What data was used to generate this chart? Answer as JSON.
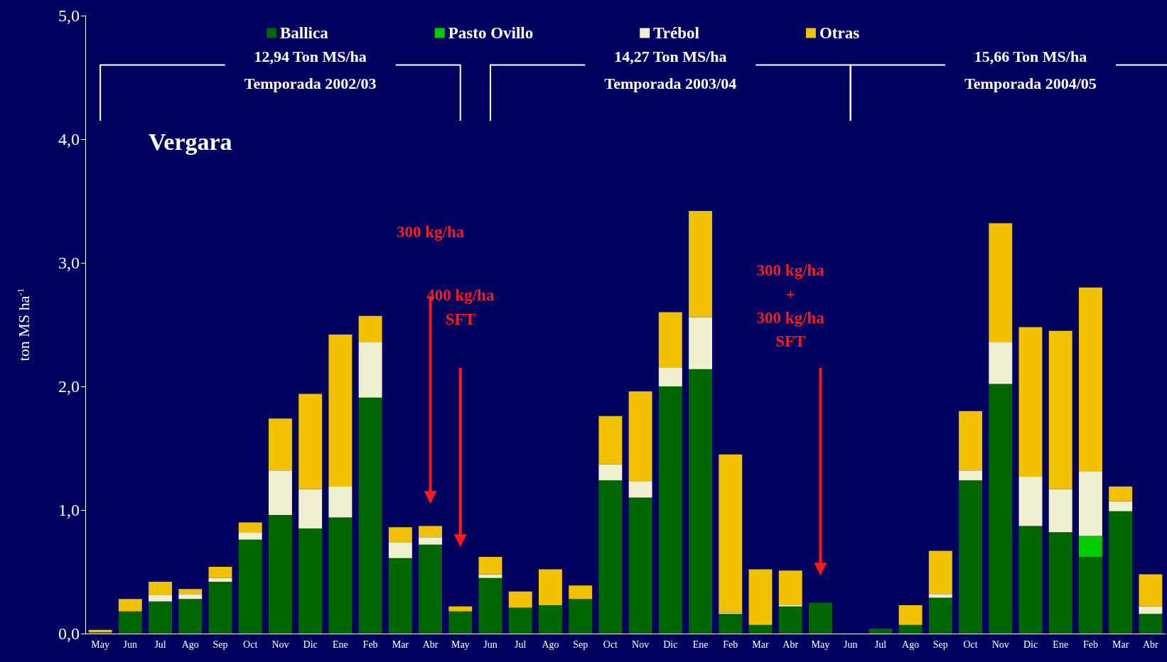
{
  "chart_data": {
    "type": "bar",
    "stacked": true,
    "legend": "top",
    "grid": false,
    "ylabel": "ton MS ha$^{-1}$",
    "categories": [
      "May",
      "Jun",
      "Jul",
      "Ago",
      "Sep",
      "Oct",
      "Nov",
      "Dic",
      "Ene",
      "Feb",
      "Mar",
      "Abr",
      "May",
      "Jun",
      "Jul",
      "Ago",
      "Sep",
      "Oct",
      "Nov",
      "Dic",
      "Ene",
      "Feb",
      "Mar",
      "Abr",
      "May",
      "Jun",
      "Jul",
      "Ago",
      "Sep",
      "Oct",
      "Nov",
      "Dic",
      "Ene",
      "Feb",
      "Mar",
      "Abr"
    ],
    "ylim": [
      0,
      5
    ],
    "yticks": [
      {
        "value": 0,
        "label": "0,0"
      },
      {
        "value": 1,
        "label": "1,0"
      },
      {
        "value": 2,
        "label": "2,0"
      },
      {
        "value": 3,
        "label": "3,0"
      },
      {
        "value": 4,
        "label": "4,0"
      },
      {
        "value": 5,
        "label": "5,0"
      }
    ],
    "series": [
      {
        "name": "Ballica",
        "color": "#006600",
        "values": [
          0.01,
          0.18,
          0.26,
          0.28,
          0.42,
          0.76,
          0.96,
          0.85,
          0.94,
          1.91,
          0.61,
          0.72,
          0.18,
          0.45,
          0.21,
          0.23,
          0.28,
          1.24,
          1.1,
          2.0,
          2.14,
          0.16,
          0.07,
          0.22,
          0.25,
          0,
          0.04,
          0.07,
          0.29,
          1.24,
          2.02,
          0.87,
          0.82,
          0.62,
          0.99,
          0.16
        ]
      },
      {
        "name": "Pasto Ovillo",
        "color": "#00cc00",
        "values": [
          0,
          0,
          0,
          0,
          0,
          0,
          0,
          0,
          0,
          0,
          0,
          0,
          0,
          0,
          0,
          0,
          0,
          0,
          0,
          0,
          0,
          0,
          0,
          0,
          0,
          0,
          0,
          0,
          0,
          0,
          0,
          0,
          0,
          0.17,
          0,
          0
        ]
      },
      {
        "name": "Trébol",
        "color": "#f0efd0",
        "values": [
          0,
          0,
          0.05,
          0.04,
          0.03,
          0.06,
          0.36,
          0.32,
          0.25,
          0.45,
          0.13,
          0.06,
          0,
          0.03,
          0,
          0,
          0,
          0.13,
          0.13,
          0.15,
          0.42,
          0.01,
          0,
          0.01,
          0,
          0,
          0,
          0,
          0.03,
          0.08,
          0.34,
          0.4,
          0.35,
          0.52,
          0.08,
          0.06
        ]
      },
      {
        "name": "Otras",
        "color": "#f2c200",
        "values": [
          0.02,
          0.1,
          0.11,
          0.04,
          0.09,
          0.08,
          0.42,
          0.77,
          1.23,
          0.21,
          0.12,
          0.09,
          0.04,
          0.14,
          0.13,
          0.29,
          0.11,
          0.39,
          0.73,
          0.45,
          0.86,
          1.28,
          0.45,
          0.28,
          0,
          0,
          0,
          0.16,
          0.35,
          0.48,
          0.96,
          1.21,
          1.28,
          1.49,
          0.12,
          0.26
        ]
      }
    ],
    "annotations": [
      "12,94 Ton MS/ha",
      "Temporada 2002/03",
      "14,27 Ton MS/ha",
      "Temporada 2003/04",
      "15,66 Ton MS/ha",
      "Temporada 2004/05",
      "Vergara",
      "300 kg/ha",
      "400 kg/ha\nSFT",
      "300 kg/ha\n+\n300 kg/ha\nSFT"
    ]
  }
}
